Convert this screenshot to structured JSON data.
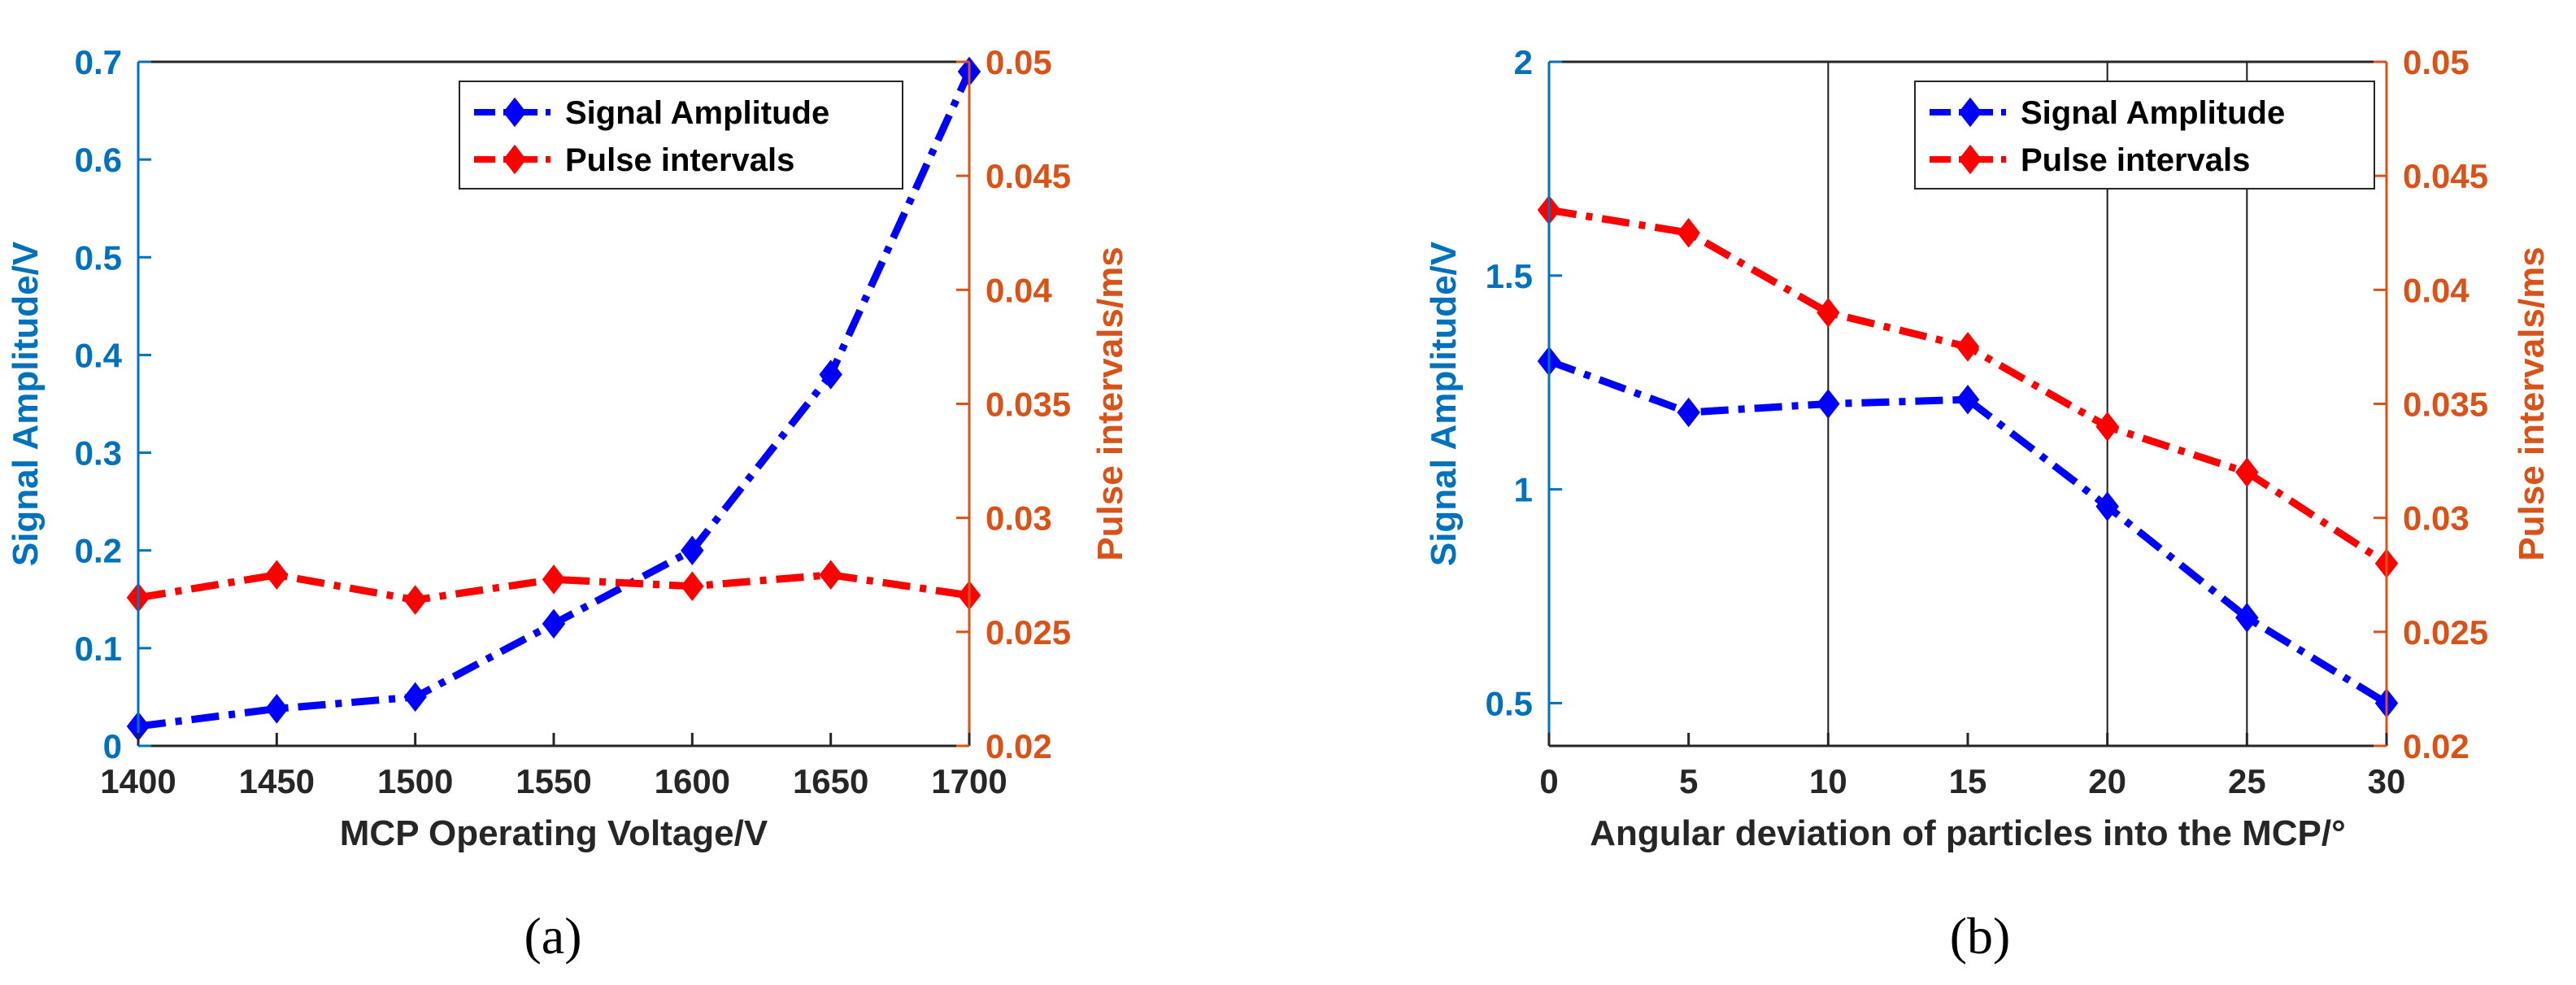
{
  "colors": {
    "left_axis": "#0072BD",
    "right_axis": "#D95319",
    "series_amplitude": "#0000FF",
    "series_intervals": "#FF0000",
    "axis_black": "#262626",
    "grid": "#1a1a1a"
  },
  "chart_data": [
    {
      "type": "line",
      "panel_label": "(a)",
      "xlabel": "MCP Operating Voltage/V",
      "ylabel_left": "Signal Amplitude/V",
      "ylabel_right": "Pulse intervals/ms",
      "xlim": [
        1400,
        1700
      ],
      "ylim_left": [
        0,
        0.7
      ],
      "ylim_right": [
        0.02,
        0.05
      ],
      "xticks": [
        1400,
        1450,
        1500,
        1550,
        1600,
        1650,
        1700
      ],
      "xtick_labels": [
        "1400",
        "1450",
        "1500",
        "1550",
        "1600",
        "1650",
        "1700"
      ],
      "yticks_left": [
        0,
        0.1,
        0.2,
        0.3,
        0.4,
        0.5,
        0.6,
        0.7
      ],
      "ytick_labels_left": [
        "0",
        "0.1",
        "0.2",
        "0.3",
        "0.4",
        "0.5",
        "0.6",
        "0.7"
      ],
      "yticks_right": [
        0.02,
        0.025,
        0.03,
        0.035,
        0.04,
        0.045,
        0.05
      ],
      "ytick_labels_right": [
        "0.02",
        "0.025",
        "0.03",
        "0.035",
        "0.04",
        "0.045",
        "0.05"
      ],
      "vgrid": [],
      "legend_position": "top-right",
      "series": [
        {
          "name": "Signal Amplitude",
          "axis": "left",
          "x": [
            1400,
            1450,
            1500,
            1550,
            1600,
            1650,
            1700
          ],
          "values": [
            0.02,
            0.038,
            0.05,
            0.125,
            0.2,
            0.38,
            0.69
          ]
        },
        {
          "name": "Pulse intervals",
          "axis": "right",
          "x": [
            1400,
            1450,
            1500,
            1550,
            1600,
            1650,
            1700
          ],
          "values": [
            0.0265,
            0.0275,
            0.0264,
            0.0273,
            0.027,
            0.0275,
            0.0266
          ]
        }
      ]
    },
    {
      "type": "line",
      "panel_label": "(b)",
      "xlabel": "Angular deviation of particles into the MCP/°",
      "ylabel_left": "Signal Amplitude/V",
      "ylabel_right": "Pulse intervals/ms",
      "xlim": [
        0,
        30
      ],
      "ylim_left": [
        0.4,
        2
      ],
      "ylim_right": [
        0.02,
        0.05
      ],
      "xticks": [
        0,
        5,
        10,
        15,
        20,
        25,
        30
      ],
      "xtick_labels": [
        "0",
        "5",
        "10",
        "15",
        "20",
        "25",
        "30"
      ],
      "yticks_left": [
        0.5,
        1,
        1.5,
        2
      ],
      "ytick_labels_left": [
        "0.5",
        "1",
        "1.5",
        "2"
      ],
      "yticks_right": [
        0.02,
        0.025,
        0.03,
        0.035,
        0.04,
        0.045,
        0.05
      ],
      "ytick_labels_right": [
        "0.02",
        "0.025",
        "0.03",
        "0.035",
        "0.04",
        "0.045",
        "0.05"
      ],
      "vgrid": [
        10,
        20,
        25
      ],
      "legend_position": "top-right",
      "series": [
        {
          "name": "Signal Amplitude",
          "axis": "left",
          "x": [
            0,
            5,
            10,
            15,
            20,
            25,
            30
          ],
          "values": [
            1.3,
            1.18,
            1.2,
            1.21,
            0.96,
            0.7,
            0.5
          ]
        },
        {
          "name": "Pulse intervals",
          "axis": "right",
          "x": [
            0,
            5,
            10,
            15,
            20,
            25,
            30
          ],
          "values": [
            0.0435,
            0.0425,
            0.039,
            0.0375,
            0.034,
            0.032,
            0.028
          ]
        }
      ]
    }
  ]
}
